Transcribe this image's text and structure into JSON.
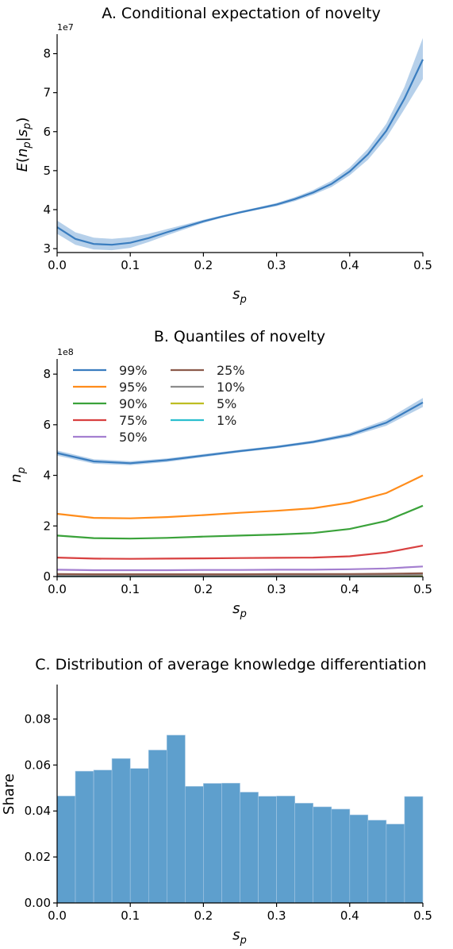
{
  "chart_data": [
    {
      "type": "line",
      "title": "A. Conditional expectation of novelty",
      "xlabel": "s_p",
      "ylabel": "E(n_p|s_p)",
      "y_multiplier": "1e7",
      "xlim": [
        0,
        0.5
      ],
      "ylim": [
        2.9,
        8.5
      ],
      "x_ticks": [
        "0.0",
        "0.1",
        "0.2",
        "0.3",
        "0.4",
        "0.5"
      ],
      "y_ticks": [
        "3",
        "4",
        "5",
        "6",
        "7",
        "8"
      ],
      "x": [
        0,
        0.025,
        0.05,
        0.075,
        0.1,
        0.125,
        0.15,
        0.175,
        0.2,
        0.225,
        0.25,
        0.275,
        0.3,
        0.325,
        0.35,
        0.375,
        0.4,
        0.425,
        0.45,
        0.475,
        0.5
      ],
      "series": [
        {
          "values": [
            3.55,
            3.25,
            3.12,
            3.1,
            3.15,
            3.27,
            3.42,
            3.56,
            3.7,
            3.82,
            3.93,
            4.03,
            4.13,
            4.27,
            4.44,
            4.66,
            4.98,
            5.42,
            6.02,
            6.85,
            7.85
          ],
          "lower": [
            3.38,
            3.1,
            2.98,
            2.96,
            3.02,
            3.17,
            3.34,
            3.5,
            3.66,
            3.79,
            3.9,
            4.0,
            4.09,
            4.22,
            4.38,
            4.58,
            4.88,
            5.28,
            5.84,
            6.58,
            7.35
          ],
          "upper": [
            3.72,
            3.42,
            3.28,
            3.25,
            3.29,
            3.38,
            3.5,
            3.62,
            3.74,
            3.85,
            3.96,
            4.06,
            4.17,
            4.32,
            4.5,
            4.74,
            5.08,
            5.56,
            6.2,
            7.15,
            8.4
          ]
        }
      ],
      "colors": {
        "line": "#3a7dbf",
        "band": "#a9c8e6"
      }
    },
    {
      "type": "line",
      "title": "B. Quantiles of novelty",
      "xlabel": "s_p",
      "ylabel": "n_p",
      "y_multiplier": "1e8",
      "xlim": [
        0,
        0.5
      ],
      "ylim": [
        0,
        8.6
      ],
      "x_ticks": [
        "0.0",
        "0.1",
        "0.2",
        "0.3",
        "0.4",
        "0.5"
      ],
      "y_ticks": [
        "0",
        "2",
        "4",
        "6",
        "8"
      ],
      "x": [
        0,
        0.05,
        0.1,
        0.15,
        0.2,
        0.25,
        0.3,
        0.35,
        0.4,
        0.45,
        0.5
      ],
      "series": [
        {
          "name": "99%",
          "color": "#3a7dbf",
          "values": [
            4.88,
            4.55,
            4.48,
            4.6,
            4.78,
            4.96,
            5.12,
            5.32,
            5.6,
            6.08,
            6.88
          ],
          "lower": [
            4.78,
            4.46,
            4.4,
            4.53,
            4.72,
            4.91,
            5.07,
            5.26,
            5.52,
            5.96,
            6.7
          ],
          "upper": [
            4.98,
            4.64,
            4.56,
            4.67,
            4.84,
            5.01,
            5.17,
            5.38,
            5.68,
            6.2,
            7.06
          ]
        },
        {
          "name": "95%",
          "color": "#ff8c1a",
          "values": [
            2.48,
            2.32,
            2.3,
            2.35,
            2.43,
            2.52,
            2.6,
            2.7,
            2.92,
            3.3,
            4.0
          ]
        },
        {
          "name": "90%",
          "color": "#3aa23a",
          "values": [
            1.62,
            1.52,
            1.5,
            1.53,
            1.58,
            1.62,
            1.66,
            1.72,
            1.88,
            2.2,
            2.8
          ]
        },
        {
          "name": "75%",
          "color": "#d84040",
          "values": [
            0.75,
            0.71,
            0.7,
            0.71,
            0.72,
            0.73,
            0.74,
            0.75,
            0.8,
            0.95,
            1.22
          ]
        },
        {
          "name": "50%",
          "color": "#a47fd0",
          "values": [
            0.27,
            0.25,
            0.25,
            0.25,
            0.26,
            0.26,
            0.27,
            0.27,
            0.29,
            0.32,
            0.4
          ]
        },
        {
          "name": "25%",
          "color": "#8c5a4b",
          "values": [
            0.1,
            0.09,
            0.09,
            0.09,
            0.09,
            0.09,
            0.1,
            0.1,
            0.1,
            0.11,
            0.13
          ]
        },
        {
          "name": "10%",
          "color": "#8c8c8c",
          "values": [
            0.05,
            0.05,
            0.05,
            0.05,
            0.05,
            0.05,
            0.05,
            0.05,
            0.05,
            0.06,
            0.07
          ]
        },
        {
          "name": "5%",
          "color": "#bdbd22",
          "values": [
            0.03,
            0.03,
            0.03,
            0.03,
            0.03,
            0.03,
            0.03,
            0.03,
            0.03,
            0.03,
            0.04
          ]
        },
        {
          "name": "1%",
          "color": "#2bbfcf",
          "values": [
            0.01,
            0.01,
            0.01,
            0.01,
            0.01,
            0.01,
            0.01,
            0.01,
            0.01,
            0.01,
            0.01
          ]
        }
      ]
    },
    {
      "type": "bar",
      "title": "C. Distribution of average knowledge differentiation",
      "xlabel": "s_p",
      "ylabel": "Share",
      "xlim": [
        0,
        0.5
      ],
      "ylim": [
        0,
        0.095
      ],
      "x_ticks": [
        "0.0",
        "0.1",
        "0.2",
        "0.3",
        "0.4",
        "0.5"
      ],
      "y_ticks": [
        "0.00",
        "0.02",
        "0.04",
        "0.06",
        "0.08"
      ],
      "bin_edges": [
        0,
        0.025,
        0.05,
        0.075,
        0.1,
        0.125,
        0.15,
        0.175,
        0.2,
        0.225,
        0.25,
        0.275,
        0.3,
        0.325,
        0.35,
        0.375,
        0.4,
        0.425,
        0.45,
        0.475,
        0.5
      ],
      "values": [
        0.0465,
        0.0573,
        0.0578,
        0.0628,
        0.0585,
        0.0665,
        0.073,
        0.0507,
        0.052,
        0.0521,
        0.0482,
        0.0464,
        0.0465,
        0.0434,
        0.0418,
        0.0408,
        0.0383,
        0.036,
        0.0343,
        0.0463
      ],
      "color": "#5e9fcd"
    }
  ]
}
